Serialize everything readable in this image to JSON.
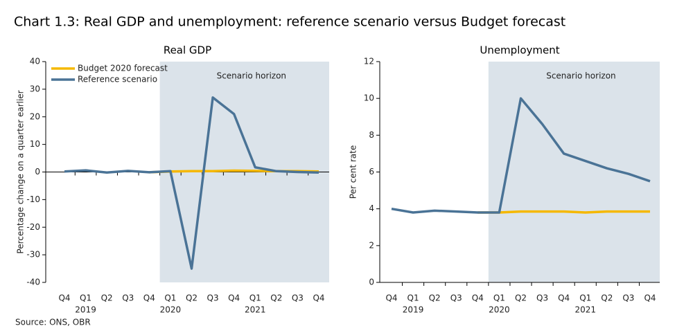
{
  "title": "Chart 1.3: Real GDP and unemployment: reference scenario versus Budget forecast",
  "source": "Source: ONS, OBR",
  "chart_data": [
    {
      "type": "line",
      "title": "Real GDP",
      "y_label": "Percentage change on a quarter earlier",
      "categories": [
        "Q4",
        "Q1",
        "Q2",
        "Q3",
        "Q4",
        "Q1",
        "Q2",
        "Q3",
        "Q4",
        "Q1",
        "Q2",
        "Q3",
        "Q4"
      ],
      "year_labels": [
        "2019",
        "2020",
        "2021"
      ],
      "annotation": "Scenario horizon",
      "ylim": [
        -40,
        40
      ],
      "yticks": [
        -40,
        -30,
        -20,
        -10,
        0,
        10,
        20,
        30,
        40
      ],
      "legend": "upper left",
      "series": [
        {
          "name": "Budget 2020 forecast",
          "color": "#f5b800",
          "values": [
            null,
            null,
            null,
            null,
            -0.1,
            0.2,
            0.3,
            0.3,
            0.5,
            0.4,
            0.3,
            0.3,
            0.2
          ]
        },
        {
          "name": "Reference scenario",
          "color": "#4a7396",
          "values": [
            0.2,
            0.6,
            -0.2,
            0.4,
            -0.1,
            0.3,
            -35,
            27,
            21,
            1.7,
            0.3,
            0,
            -0.2
          ]
        }
      ]
    },
    {
      "type": "line",
      "title": "Unemployment",
      "y_label": "Per cent rate",
      "categories": [
        "Q4",
        "Q1",
        "Q2",
        "Q3",
        "Q4",
        "Q1",
        "Q2",
        "Q3",
        "Q4",
        "Q1",
        "Q2",
        "Q3",
        "Q4"
      ],
      "year_labels": [
        "2019",
        "2020",
        "2021"
      ],
      "annotation": "Scenario horizon",
      "ylim": [
        0,
        12
      ],
      "yticks": [
        0,
        2,
        4,
        6,
        8,
        10,
        12
      ],
      "series": [
        {
          "name": "Budget 2020 forecast",
          "color": "#f5b800",
          "values": [
            null,
            null,
            null,
            null,
            3.8,
            3.8,
            3.85,
            3.85,
            3.85,
            3.8,
            3.85,
            3.85,
            3.85
          ]
        },
        {
          "name": "Reference scenario",
          "color": "#4a7396",
          "values": [
            4.0,
            3.8,
            3.9,
            3.85,
            3.8,
            3.8,
            10.0,
            8.6,
            7.0,
            6.6,
            6.2,
            5.9,
            5.5
          ]
        }
      ]
    }
  ]
}
